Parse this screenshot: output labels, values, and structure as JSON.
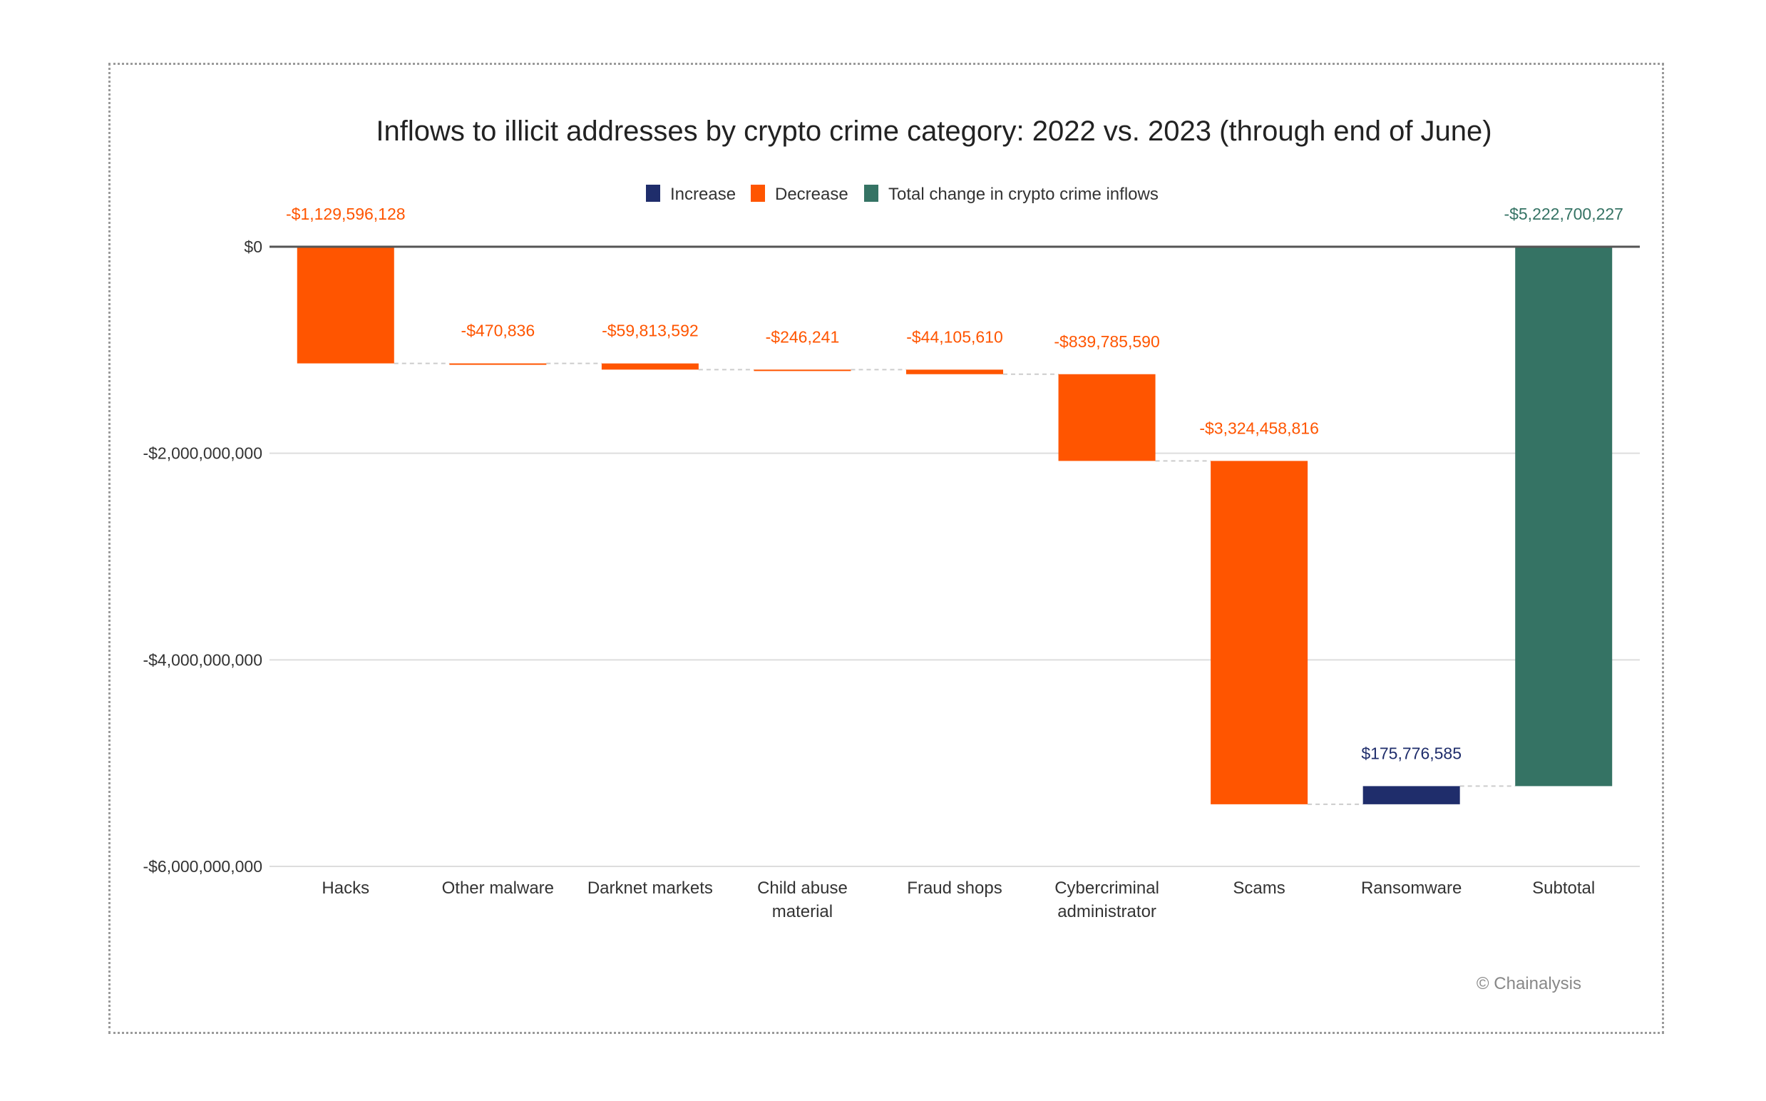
{
  "chart_data": {
    "type": "bar",
    "subtype": "waterfall",
    "title": "Inflows to illicit addresses by crypto crime category: 2022 vs. 2023 (through end of June)",
    "xlabel": "",
    "ylabel": "",
    "ylim": [
      -6000000000,
      0
    ],
    "yticks": [
      {
        "value": 0,
        "label": "$0"
      },
      {
        "value": -2000000000,
        "label": "-$2,000,000,000"
      },
      {
        "value": -4000000000,
        "label": "-$4,000,000,000"
      },
      {
        "value": -6000000000,
        "label": "-$6,000,000,000"
      }
    ],
    "grid": true,
    "legend_position": "top-center",
    "legend": [
      {
        "name": "Increase",
        "color": "#1f2d6b"
      },
      {
        "name": "Decrease",
        "color": "#ff5500"
      },
      {
        "name": "Total change in crypto crime inflows",
        "color": "#357364"
      }
    ],
    "categories": [
      [
        "Hacks"
      ],
      [
        "Other malware"
      ],
      [
        "Darknet markets"
      ],
      [
        "Child abuse",
        "material"
      ],
      [
        "Fraud shops"
      ],
      [
        "Cybercriminal",
        "administrator"
      ],
      [
        "Scams"
      ],
      [
        "Ransomware"
      ],
      [
        "Subtotal"
      ]
    ],
    "values": [
      -1129596128,
      -470836,
      -59813592,
      -246241,
      -44105610,
      -839785590,
      -3324458816,
      175776585,
      -5222700227
    ],
    "value_labels": [
      "-$1,129,596,128",
      "-$470,836",
      "-$59,813,592",
      "-$246,241",
      "-$44,105,610",
      "-$839,785,590",
      "-$3,324,458,816",
      "$175,776,585",
      "-$5,222,700,227"
    ],
    "kinds": [
      "decrease",
      "decrease",
      "decrease",
      "decrease",
      "decrease",
      "decrease",
      "decrease",
      "increase",
      "total"
    ],
    "colors": {
      "increase": "#1f2d6b",
      "decrease": "#ff5500",
      "total": "#357364",
      "decrease_label": "#ff5500",
      "increase_label": "#1f2d6b",
      "total_label": "#357364",
      "gridline": "#dddddd",
      "zero_line": "#555555"
    }
  },
  "credit": "© Chainalysis"
}
